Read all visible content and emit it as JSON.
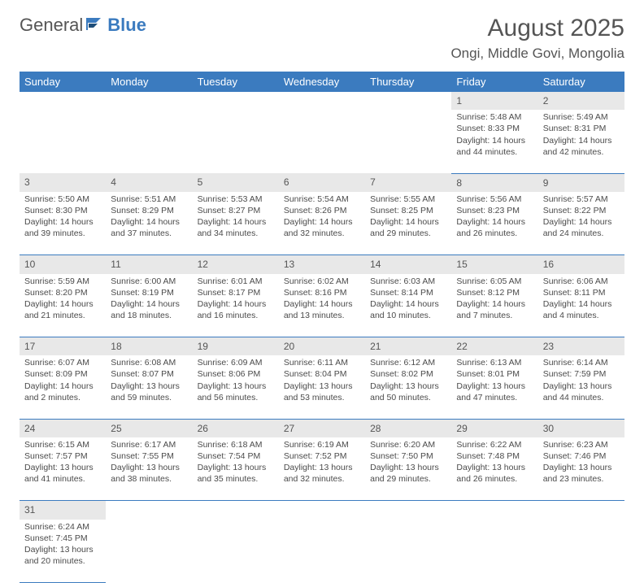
{
  "brand": {
    "part1": "General",
    "part2": "Blue"
  },
  "title": "August 2025",
  "location": "Ongi, Middle Govi, Mongolia",
  "colors": {
    "accent": "#3b7bbf",
    "header_row_bg": "#e8e8e8",
    "text": "#4b4b4b"
  },
  "weekdays": [
    "Sunday",
    "Monday",
    "Tuesday",
    "Wednesday",
    "Thursday",
    "Friday",
    "Saturday"
  ],
  "weeks": [
    [
      null,
      null,
      null,
      null,
      null,
      {
        "n": "1",
        "sr": "Sunrise: 5:48 AM",
        "ss": "Sunset: 8:33 PM",
        "dl": "Daylight: 14 hours and 44 minutes."
      },
      {
        "n": "2",
        "sr": "Sunrise: 5:49 AM",
        "ss": "Sunset: 8:31 PM",
        "dl": "Daylight: 14 hours and 42 minutes."
      }
    ],
    [
      {
        "n": "3",
        "sr": "Sunrise: 5:50 AM",
        "ss": "Sunset: 8:30 PM",
        "dl": "Daylight: 14 hours and 39 minutes."
      },
      {
        "n": "4",
        "sr": "Sunrise: 5:51 AM",
        "ss": "Sunset: 8:29 PM",
        "dl": "Daylight: 14 hours and 37 minutes."
      },
      {
        "n": "5",
        "sr": "Sunrise: 5:53 AM",
        "ss": "Sunset: 8:27 PM",
        "dl": "Daylight: 14 hours and 34 minutes."
      },
      {
        "n": "6",
        "sr": "Sunrise: 5:54 AM",
        "ss": "Sunset: 8:26 PM",
        "dl": "Daylight: 14 hours and 32 minutes."
      },
      {
        "n": "7",
        "sr": "Sunrise: 5:55 AM",
        "ss": "Sunset: 8:25 PM",
        "dl": "Daylight: 14 hours and 29 minutes."
      },
      {
        "n": "8",
        "sr": "Sunrise: 5:56 AM",
        "ss": "Sunset: 8:23 PM",
        "dl": "Daylight: 14 hours and 26 minutes."
      },
      {
        "n": "9",
        "sr": "Sunrise: 5:57 AM",
        "ss": "Sunset: 8:22 PM",
        "dl": "Daylight: 14 hours and 24 minutes."
      }
    ],
    [
      {
        "n": "10",
        "sr": "Sunrise: 5:59 AM",
        "ss": "Sunset: 8:20 PM",
        "dl": "Daylight: 14 hours and 21 minutes."
      },
      {
        "n": "11",
        "sr": "Sunrise: 6:00 AM",
        "ss": "Sunset: 8:19 PM",
        "dl": "Daylight: 14 hours and 18 minutes."
      },
      {
        "n": "12",
        "sr": "Sunrise: 6:01 AM",
        "ss": "Sunset: 8:17 PM",
        "dl": "Daylight: 14 hours and 16 minutes."
      },
      {
        "n": "13",
        "sr": "Sunrise: 6:02 AM",
        "ss": "Sunset: 8:16 PM",
        "dl": "Daylight: 14 hours and 13 minutes."
      },
      {
        "n": "14",
        "sr": "Sunrise: 6:03 AM",
        "ss": "Sunset: 8:14 PM",
        "dl": "Daylight: 14 hours and 10 minutes."
      },
      {
        "n": "15",
        "sr": "Sunrise: 6:05 AM",
        "ss": "Sunset: 8:12 PM",
        "dl": "Daylight: 14 hours and 7 minutes."
      },
      {
        "n": "16",
        "sr": "Sunrise: 6:06 AM",
        "ss": "Sunset: 8:11 PM",
        "dl": "Daylight: 14 hours and 4 minutes."
      }
    ],
    [
      {
        "n": "17",
        "sr": "Sunrise: 6:07 AM",
        "ss": "Sunset: 8:09 PM",
        "dl": "Daylight: 14 hours and 2 minutes."
      },
      {
        "n": "18",
        "sr": "Sunrise: 6:08 AM",
        "ss": "Sunset: 8:07 PM",
        "dl": "Daylight: 13 hours and 59 minutes."
      },
      {
        "n": "19",
        "sr": "Sunrise: 6:09 AM",
        "ss": "Sunset: 8:06 PM",
        "dl": "Daylight: 13 hours and 56 minutes."
      },
      {
        "n": "20",
        "sr": "Sunrise: 6:11 AM",
        "ss": "Sunset: 8:04 PM",
        "dl": "Daylight: 13 hours and 53 minutes."
      },
      {
        "n": "21",
        "sr": "Sunrise: 6:12 AM",
        "ss": "Sunset: 8:02 PM",
        "dl": "Daylight: 13 hours and 50 minutes."
      },
      {
        "n": "22",
        "sr": "Sunrise: 6:13 AM",
        "ss": "Sunset: 8:01 PM",
        "dl": "Daylight: 13 hours and 47 minutes."
      },
      {
        "n": "23",
        "sr": "Sunrise: 6:14 AM",
        "ss": "Sunset: 7:59 PM",
        "dl": "Daylight: 13 hours and 44 minutes."
      }
    ],
    [
      {
        "n": "24",
        "sr": "Sunrise: 6:15 AM",
        "ss": "Sunset: 7:57 PM",
        "dl": "Daylight: 13 hours and 41 minutes."
      },
      {
        "n": "25",
        "sr": "Sunrise: 6:17 AM",
        "ss": "Sunset: 7:55 PM",
        "dl": "Daylight: 13 hours and 38 minutes."
      },
      {
        "n": "26",
        "sr": "Sunrise: 6:18 AM",
        "ss": "Sunset: 7:54 PM",
        "dl": "Daylight: 13 hours and 35 minutes."
      },
      {
        "n": "27",
        "sr": "Sunrise: 6:19 AM",
        "ss": "Sunset: 7:52 PM",
        "dl": "Daylight: 13 hours and 32 minutes."
      },
      {
        "n": "28",
        "sr": "Sunrise: 6:20 AM",
        "ss": "Sunset: 7:50 PM",
        "dl": "Daylight: 13 hours and 29 minutes."
      },
      {
        "n": "29",
        "sr": "Sunrise: 6:22 AM",
        "ss": "Sunset: 7:48 PM",
        "dl": "Daylight: 13 hours and 26 minutes."
      },
      {
        "n": "30",
        "sr": "Sunrise: 6:23 AM",
        "ss": "Sunset: 7:46 PM",
        "dl": "Daylight: 13 hours and 23 minutes."
      }
    ],
    [
      {
        "n": "31",
        "sr": "Sunrise: 6:24 AM",
        "ss": "Sunset: 7:45 PM",
        "dl": "Daylight: 13 hours and 20 minutes."
      },
      null,
      null,
      null,
      null,
      null,
      null
    ]
  ]
}
